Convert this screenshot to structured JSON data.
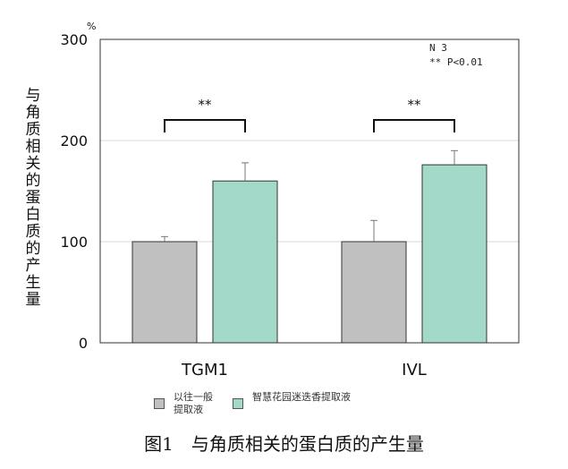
{
  "chart_data": {
    "type": "bar",
    "categories": [
      "TGM1",
      "IVL"
    ],
    "series": [
      {
        "name": "以往一般\n提取液",
        "color": "#c0c0c0",
        "values": [
          100,
          100
        ],
        "error_upper": [
          105,
          121
        ]
      },
      {
        "name": "智慧花园迷迭香提取液",
        "color": "#a3d9c8",
        "values": [
          160,
          176
        ],
        "error_upper": [
          178,
          190
        ]
      }
    ],
    "ylabel": "与角质相关的蛋白质的产生量",
    "yunit": "%",
    "ylim": [
      0,
      300
    ],
    "yticks": [
      "0",
      "100",
      "200",
      "300"
    ],
    "grid": true,
    "legend_position": "bottom",
    "annotations": {
      "n_note": "N 3",
      "p_note": "** P<0.01",
      "significance": [
        "**",
        "**"
      ]
    },
    "caption": "图1　与角质相关的蛋白质的产生量"
  }
}
